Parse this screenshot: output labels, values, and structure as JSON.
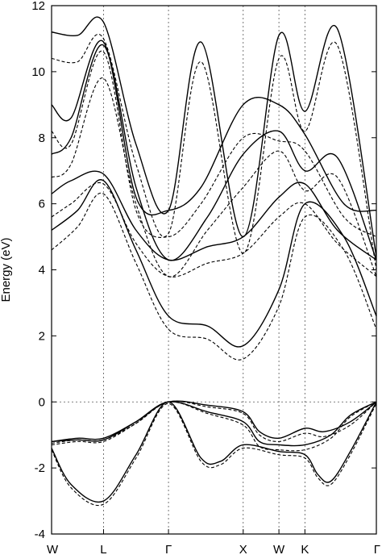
{
  "chart_data": {
    "type": "line",
    "ylabel": "Energy (eV)",
    "ylim": [
      -4,
      12
    ],
    "yticks": [
      -4,
      -2,
      0,
      2,
      4,
      6,
      8,
      10,
      12
    ],
    "xlim": [
      0,
      5
    ],
    "kpoints": [
      {
        "label": "W",
        "x": 0
      },
      {
        "label": "L",
        "x": 0.8
      },
      {
        "label": "Γ",
        "x": 1.8
      },
      {
        "label": "X",
        "x": 2.95
      },
      {
        "label": "W",
        "x": 3.5
      },
      {
        "label": "K",
        "x": 3.9
      },
      {
        "label": "Γ",
        "x": 5.0
      }
    ],
    "fermi_level": 0,
    "grid": "dotted vertical lines at high-symmetry points and horizontal line at 0",
    "series": [
      {
        "style": "solid",
        "points": [
          [
            0,
            -1.2
          ],
          [
            0.4,
            -1.1
          ],
          [
            0.8,
            -1.1
          ],
          [
            1.3,
            -0.6
          ],
          [
            1.8,
            0
          ],
          [
            2.4,
            -0.1
          ],
          [
            2.95,
            -0.3
          ],
          [
            3.2,
            -0.9
          ],
          [
            3.5,
            -1.1
          ],
          [
            3.9,
            -0.8
          ],
          [
            4.2,
            -0.9
          ],
          [
            4.6,
            -0.6
          ],
          [
            5,
            0
          ]
        ]
      },
      {
        "style": "solid",
        "points": [
          [
            0,
            -1.2
          ],
          [
            0.4,
            -1.15
          ],
          [
            0.8,
            -1.15
          ],
          [
            1.3,
            -0.6
          ],
          [
            1.8,
            0
          ],
          [
            2.4,
            -0.3
          ],
          [
            2.95,
            -0.6
          ],
          [
            3.2,
            -1.2
          ],
          [
            3.5,
            -1.3
          ],
          [
            3.9,
            -1.3
          ],
          [
            4.3,
            -1.0
          ],
          [
            4.6,
            -0.4
          ],
          [
            5,
            0
          ]
        ]
      },
      {
        "style": "solid",
        "points": [
          [
            0,
            -1.4
          ],
          [
            0.3,
            -2.5
          ],
          [
            0.8,
            -3.0
          ],
          [
            1.3,
            -1.6
          ],
          [
            1.8,
            0
          ],
          [
            2.3,
            -1.7
          ],
          [
            2.6,
            -1.8
          ],
          [
            2.95,
            -1.3
          ],
          [
            3.5,
            -1.5
          ],
          [
            3.9,
            -1.6
          ],
          [
            4.1,
            -2.2
          ],
          [
            4.3,
            -2.4
          ],
          [
            4.6,
            -1.5
          ],
          [
            5,
            0
          ]
        ]
      },
      {
        "style": "dashed",
        "points": [
          [
            0,
            -1.25
          ],
          [
            0.4,
            -1.15
          ],
          [
            0.8,
            -1.15
          ],
          [
            1.3,
            -0.65
          ],
          [
            1.8,
            0
          ],
          [
            2.4,
            -0.15
          ],
          [
            2.95,
            -0.35
          ],
          [
            3.2,
            -1.0
          ],
          [
            3.5,
            -1.2
          ],
          [
            3.9,
            -0.95
          ],
          [
            4.2,
            -1.05
          ],
          [
            4.6,
            -0.7
          ],
          [
            5,
            0
          ]
        ]
      },
      {
        "style": "dashed",
        "points": [
          [
            0,
            -1.3
          ],
          [
            0.4,
            -1.2
          ],
          [
            0.8,
            -1.2
          ],
          [
            1.3,
            -0.65
          ],
          [
            1.8,
            0
          ],
          [
            2.4,
            -0.35
          ],
          [
            2.95,
            -0.7
          ],
          [
            3.2,
            -1.35
          ],
          [
            3.5,
            -1.45
          ],
          [
            3.9,
            -1.45
          ],
          [
            4.3,
            -1.1
          ],
          [
            4.6,
            -0.45
          ],
          [
            5,
            0
          ]
        ]
      },
      {
        "style": "dashed",
        "points": [
          [
            0,
            -1.45
          ],
          [
            0.3,
            -2.6
          ],
          [
            0.8,
            -3.1
          ],
          [
            1.3,
            -1.7
          ],
          [
            1.8,
            -0.05
          ],
          [
            2.3,
            -1.8
          ],
          [
            2.6,
            -1.9
          ],
          [
            2.95,
            -1.4
          ],
          [
            3.5,
            -1.6
          ],
          [
            3.9,
            -1.7
          ],
          [
            4.1,
            -2.3
          ],
          [
            4.3,
            -2.5
          ],
          [
            4.6,
            -1.6
          ],
          [
            5,
            -0.05
          ]
        ]
      },
      {
        "style": "solid",
        "points": [
          [
            0,
            5.2
          ],
          [
            0.4,
            5.8
          ],
          [
            0.8,
            6.7
          ],
          [
            1.3,
            4.6
          ],
          [
            1.8,
            2.6
          ],
          [
            2.4,
            2.3
          ],
          [
            2.95,
            1.7
          ],
          [
            3.5,
            3.4
          ],
          [
            3.9,
            6.0
          ],
          [
            4.5,
            5.0
          ],
          [
            5,
            2.6
          ]
        ]
      },
      {
        "style": "solid",
        "points": [
          [
            0,
            6.3
          ],
          [
            0.3,
            6.7
          ],
          [
            0.8,
            6.9
          ],
          [
            1.3,
            5.2
          ],
          [
            1.8,
            4.3
          ],
          [
            2.4,
            4.7
          ],
          [
            2.95,
            5.0
          ],
          [
            3.5,
            6.2
          ],
          [
            3.9,
            6.6
          ],
          [
            4.4,
            5.2
          ],
          [
            5,
            4.3
          ]
        ]
      },
      {
        "style": "solid",
        "points": [
          [
            0,
            7.5
          ],
          [
            0.3,
            8.0
          ],
          [
            0.8,
            10.8
          ],
          [
            1.3,
            6.5
          ],
          [
            1.8,
            4.3
          ],
          [
            2.4,
            5.6
          ],
          [
            2.95,
            7.5
          ],
          [
            3.5,
            8.2
          ],
          [
            3.9,
            7.0
          ],
          [
            4.4,
            7.4
          ],
          [
            5,
            4.3
          ]
        ]
      },
      {
        "style": "solid",
        "points": [
          [
            0,
            9.0
          ],
          [
            0.3,
            8.6
          ],
          [
            0.8,
            10.9
          ],
          [
            1.3,
            6.2
          ],
          [
            1.8,
            5.8
          ],
          [
            2.3,
            6.5
          ],
          [
            2.95,
            9.0
          ],
          [
            3.5,
            9.0
          ],
          [
            3.9,
            8.1
          ],
          [
            4.5,
            6.0
          ],
          [
            5,
            5.8
          ]
        ]
      },
      {
        "style": "solid",
        "points": [
          [
            0,
            11.2
          ],
          [
            0.4,
            11.1
          ],
          [
            0.8,
            11.5
          ],
          [
            1.3,
            7.8
          ],
          [
            1.8,
            5.8
          ],
          [
            2.3,
            10.9
          ],
          [
            2.95,
            5.0
          ],
          [
            3.5,
            11.1
          ],
          [
            3.9,
            8.8
          ],
          [
            4.4,
            11.3
          ],
          [
            5,
            4.4
          ]
        ]
      },
      {
        "style": "dashed",
        "points": [
          [
            0,
            4.6
          ],
          [
            0.4,
            5.3
          ],
          [
            0.8,
            6.3
          ],
          [
            1.3,
            4.2
          ],
          [
            1.8,
            2.2
          ],
          [
            2.4,
            1.9
          ],
          [
            2.95,
            1.3
          ],
          [
            3.5,
            2.9
          ],
          [
            3.9,
            5.6
          ],
          [
            4.5,
            4.6
          ],
          [
            5,
            2.2
          ]
        ]
      },
      {
        "style": "dashed",
        "points": [
          [
            0,
            5.6
          ],
          [
            0.3,
            6.0
          ],
          [
            0.8,
            6.6
          ],
          [
            1.3,
            4.8
          ],
          [
            1.8,
            3.8
          ],
          [
            2.4,
            4.2
          ],
          [
            2.95,
            4.5
          ],
          [
            3.5,
            5.6
          ],
          [
            3.9,
            6.0
          ],
          [
            4.4,
            4.8
          ],
          [
            5,
            3.8
          ]
        ]
      },
      {
        "style": "dashed",
        "points": [
          [
            0,
            6.8
          ],
          [
            0.3,
            7.2
          ],
          [
            0.8,
            9.8
          ],
          [
            1.3,
            6.0
          ],
          [
            1.8,
            3.8
          ],
          [
            2.4,
            5.2
          ],
          [
            2.95,
            6.5
          ],
          [
            3.5,
            7.6
          ],
          [
            3.9,
            6.4
          ],
          [
            4.4,
            6.8
          ],
          [
            5,
            3.8
          ]
        ]
      },
      {
        "style": "dashed",
        "points": [
          [
            0,
            8.2
          ],
          [
            0.3,
            7.8
          ],
          [
            0.8,
            10.6
          ],
          [
            1.3,
            5.8
          ],
          [
            1.8,
            5.0
          ],
          [
            2.3,
            6.0
          ],
          [
            2.95,
            8.0
          ],
          [
            3.5,
            7.9
          ],
          [
            3.9,
            7.6
          ],
          [
            4.5,
            5.6
          ],
          [
            5,
            5.0
          ]
        ]
      },
      {
        "style": "dashed",
        "points": [
          [
            0,
            10.4
          ],
          [
            0.4,
            10.3
          ],
          [
            0.8,
            11.0
          ],
          [
            1.3,
            7.2
          ],
          [
            1.8,
            5.1
          ],
          [
            2.3,
            10.3
          ],
          [
            2.95,
            4.5
          ],
          [
            3.5,
            10.4
          ],
          [
            3.9,
            8.2
          ],
          [
            4.4,
            10.8
          ],
          [
            5,
            4.0
          ]
        ]
      }
    ]
  }
}
